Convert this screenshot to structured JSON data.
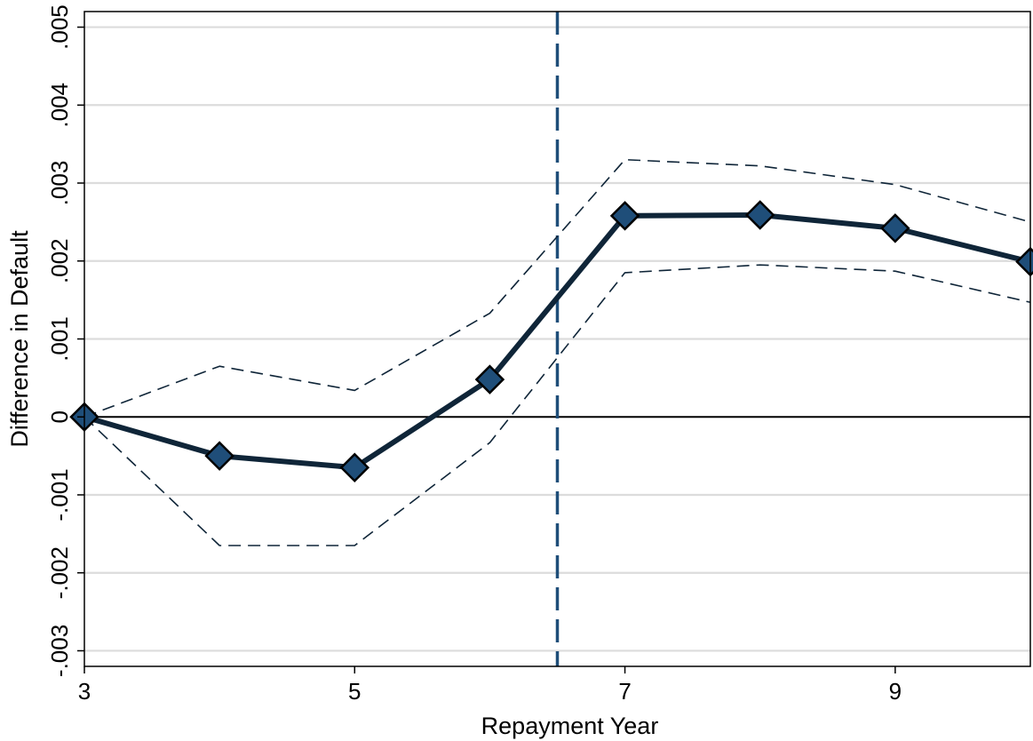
{
  "chart_data": {
    "type": "line",
    "title": "",
    "xlabel": "Repayment Year",
    "ylabel": "Difference in Default",
    "xlim": [
      3,
      10
    ],
    "ylim": [
      -0.0032,
      0.0052
    ],
    "xticks": [
      3,
      5,
      7,
      9
    ],
    "xtick_labels": [
      "3",
      "5",
      "7",
      "9"
    ],
    "yticks": [
      -0.003,
      -0.002,
      -0.001,
      0,
      0.001,
      0.002,
      0.003,
      0.004,
      0.005
    ],
    "ytick_labels": [
      "-.003",
      "-.002",
      "-.001",
      "0",
      ".001",
      ".002",
      ".003",
      ".004",
      ".005"
    ],
    "grid": true,
    "legend": "none",
    "x": [
      3,
      4,
      5,
      6,
      7,
      8,
      9,
      10
    ],
    "series": [
      {
        "role": "estimate",
        "values": [
          0,
          -0.0005,
          -0.00065,
          0.00048,
          0.00258,
          0.00259,
          0.00242,
          0.00199
        ],
        "color": "#0f2538",
        "marker": "diamond",
        "marker_color": "#1f4e79"
      },
      {
        "role": "upper-bound",
        "values": [
          0,
          0.00065,
          0.00034,
          0.00133,
          0.0033,
          0.00322,
          0.00298,
          0.0025
        ],
        "color": "#0f2538",
        "style": "dashed"
      },
      {
        "role": "lower-bound",
        "values": [
          0,
          -0.00165,
          -0.00165,
          -0.00033,
          0.00185,
          0.00195,
          0.00187,
          0.00147
        ],
        "color": "#0f2538",
        "style": "dashed"
      }
    ],
    "reference_lines": {
      "horizontal_y": 0,
      "vertical_x": 6.5,
      "vertical_color": "#1f4e79"
    }
  }
}
